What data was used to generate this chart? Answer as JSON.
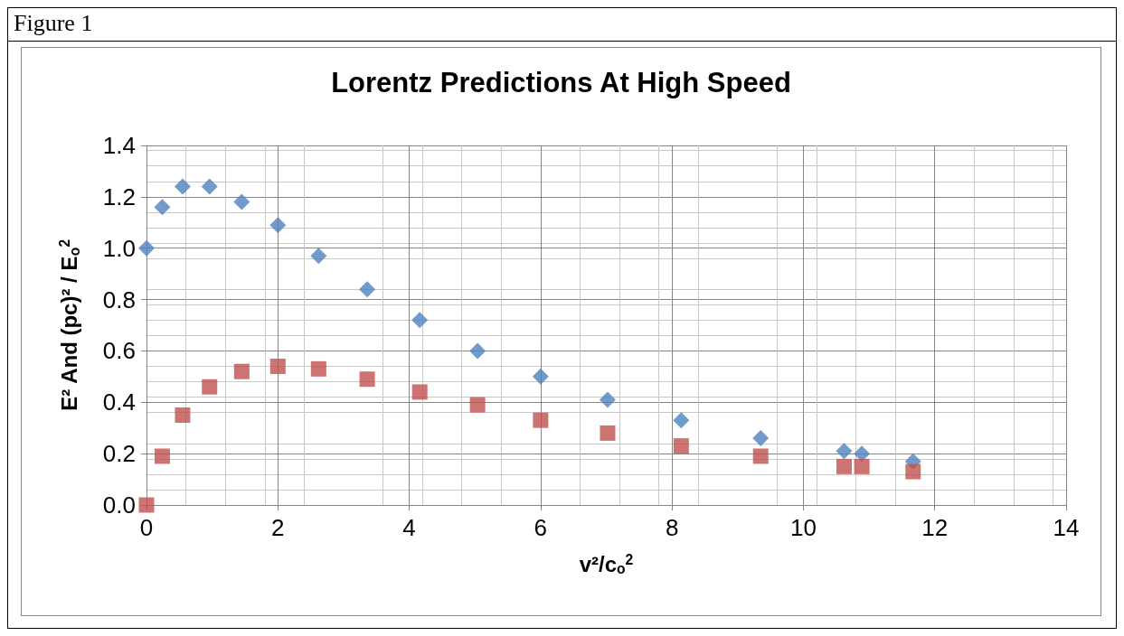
{
  "chart_data": {
    "type": "scatter",
    "title": "Lorentz Predictions At High Speed",
    "xlabel": "v²/c$_{o}$$^{2}$",
    "ylabel": "E² And (pc)² / E$_{o}$$^{2}$",
    "annotations": [
      "Figure 1"
    ],
    "x": [
      0,
      0.24,
      0.55,
      0.96,
      1.45,
      2.0,
      2.62,
      3.36,
      4.16,
      5.04,
      6.0,
      7.02,
      8.14,
      9.35,
      10.62,
      10.89,
      11.67
    ],
    "series": [
      {
        "color": "#4f81bd",
        "marker": "diamond",
        "values": [
          1.0,
          1.16,
          1.24,
          1.24,
          1.18,
          1.09,
          0.97,
          0.84,
          0.72,
          0.6,
          0.5,
          0.41,
          0.33,
          0.26,
          0.21,
          0.2,
          0.17
        ]
      },
      {
        "color": "#c0504d",
        "marker": "square",
        "values": [
          0,
          0.19,
          0.35,
          0.46,
          0.52,
          0.54,
          0.53,
          0.49,
          0.44,
          0.39,
          0.33,
          0.28,
          0.23,
          0.19,
          0.15,
          0.15,
          0.13
        ]
      }
    ],
    "xlim": [
      0,
      14
    ],
    "xticks": [
      0,
      2,
      4,
      6,
      8,
      10,
      12,
      14
    ],
    "ylim": [
      0,
      1.4
    ],
    "yticks": [
      {
        "value": 0,
        "label": "0.0"
      },
      {
        "value": 0.2,
        "label": "0.2"
      },
      {
        "value": 0.4,
        "label": "0.4"
      },
      {
        "value": 0.6,
        "label": "0.6"
      },
      {
        "value": 0.8,
        "label": "0.8"
      },
      {
        "value": 1.0,
        "label": "1.0"
      },
      {
        "value": 1.2,
        "label": "1.2"
      },
      {
        "value": 1.4,
        "label": "1.4"
      }
    ],
    "grid": true
  }
}
